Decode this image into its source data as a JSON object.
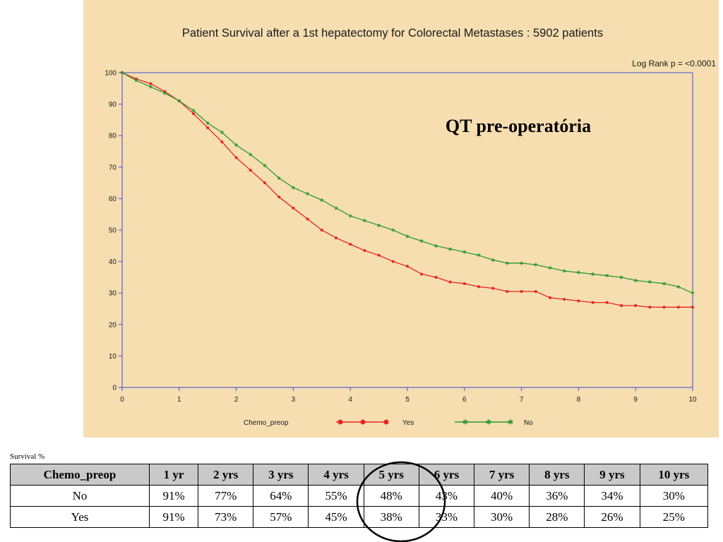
{
  "chart_data": {
    "type": "line",
    "title": "Patient Survival after a 1st hepatectomy for Colorectal Metastases : 5902 patients",
    "annotation": "Log Rank p = <0.0001",
    "overlay_text": "QT pre-operatória",
    "xlabel": "",
    "ylabel": "",
    "xlim": [
      0,
      10
    ],
    "ylim": [
      0,
      100
    ],
    "x_ticks": [
      0,
      1,
      2,
      3,
      4,
      5,
      6,
      7,
      8,
      9,
      10
    ],
    "y_ticks": [
      0,
      10,
      20,
      30,
      40,
      50,
      60,
      70,
      80,
      90,
      100
    ],
    "grid": false,
    "legend_title": "Chemo_preop",
    "legend_position": "bottom",
    "series": [
      {
        "name": "Yes",
        "color": "#e8251d",
        "marker": "dot",
        "x": [
          0,
          0.25,
          0.5,
          0.75,
          1,
          1.25,
          1.5,
          1.75,
          2,
          2.25,
          2.5,
          2.75,
          3,
          3.25,
          3.5,
          3.75,
          4,
          4.25,
          4.5,
          4.75,
          5,
          5.25,
          5.5,
          5.75,
          6,
          6.25,
          6.5,
          6.75,
          7,
          7.25,
          7.5,
          7.75,
          8,
          8.25,
          8.5,
          8.75,
          9,
          9.25,
          9.5,
          9.75,
          10
        ],
        "y": [
          100,
          98,
          96.5,
          94,
          91,
          87,
          82.5,
          78,
          73,
          69,
          65,
          60.5,
          57,
          53.5,
          50,
          47.5,
          45.5,
          43.5,
          42,
          40,
          38.5,
          36,
          35,
          33.5,
          33,
          32,
          31.5,
          30.5,
          30.5,
          30.5,
          28.5,
          28,
          27.5,
          27,
          27,
          26,
          26,
          25.5,
          25.5,
          25.5,
          25.5
        ]
      },
      {
        "name": "No",
        "color": "#2e9a2e",
        "marker": "star",
        "x": [
          0,
          0.25,
          0.5,
          0.75,
          1,
          1.25,
          1.5,
          1.75,
          2,
          2.25,
          2.5,
          2.75,
          3,
          3.25,
          3.5,
          3.75,
          4,
          4.25,
          4.5,
          4.75,
          5,
          5.25,
          5.5,
          5.75,
          6,
          6.25,
          6.5,
          6.75,
          7,
          7.25,
          7.5,
          7.75,
          8,
          8.25,
          8.5,
          8.75,
          9,
          9.25,
          9.5,
          9.75,
          10
        ],
        "y": [
          100,
          97.5,
          95.5,
          93.5,
          91,
          88,
          84,
          81,
          77,
          74,
          70.5,
          66.5,
          63.5,
          61.5,
          59.5,
          57,
          54.5,
          53,
          51.5,
          50,
          48,
          46.5,
          45,
          44,
          43,
          42,
          40.5,
          39.5,
          39.5,
          39,
          38,
          37,
          36.5,
          36,
          35.5,
          35,
          34,
          33.5,
          33,
          32,
          30
        ]
      }
    ]
  },
  "table": {
    "caption": "Survival %",
    "header": [
      "Chemo_preop",
      "1 yr",
      "2 yrs",
      "3 yrs",
      "4 yrs",
      "5 yrs",
      "6 yrs",
      "7 yrs",
      "8 yrs",
      "9 yrs",
      "10 yrs"
    ],
    "rows": [
      [
        "No",
        "91%",
        "77%",
        "64%",
        "55%",
        "48%",
        "43%",
        "40%",
        "36%",
        "34%",
        "30%"
      ],
      [
        "Yes",
        "91%",
        "73%",
        "57%",
        "45%",
        "38%",
        "33%",
        "30%",
        "28%",
        "26%",
        "25%"
      ]
    ],
    "highlighted_column": "5 yrs"
  }
}
